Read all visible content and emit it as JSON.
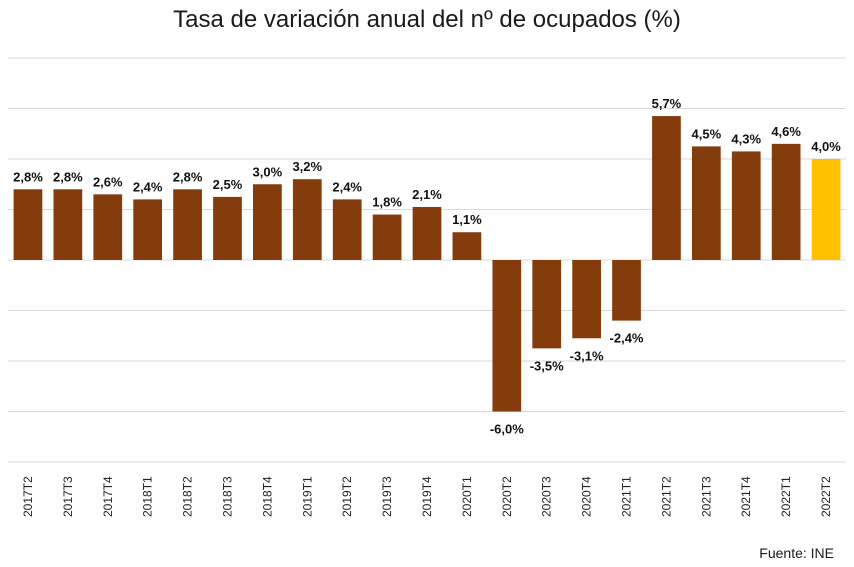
{
  "title": "Tasa de variación anual del nº de ocupados (%)",
  "source": "Fuente: INE",
  "chart_data": {
    "type": "bar",
    "title": "Tasa de variación anual del nº de ocupados (%)",
    "xlabel": "",
    "ylabel": "",
    "ylim": [
      -8,
      8
    ],
    "grid": true,
    "categories": [
      "2017T2",
      "2017T3",
      "2017T4",
      "2018T1",
      "2018T2",
      "2018T3",
      "2018T4",
      "2019T1",
      "2019T2",
      "2019T3",
      "2019T4",
      "2020T1",
      "2020T2",
      "2020T3",
      "2020T4",
      "2021T1",
      "2021T2",
      "2021T3",
      "2021T4",
      "2022T1",
      "2022T2"
    ],
    "values": [
      2.8,
      2.8,
      2.6,
      2.4,
      2.8,
      2.5,
      3.0,
      3.2,
      2.4,
      1.8,
      2.1,
      1.1,
      -6.0,
      -3.5,
      -3.1,
      -2.4,
      5.7,
      4.5,
      4.3,
      4.6,
      4.0
    ],
    "labels": [
      "2,8%",
      "2,8%",
      "2,6%",
      "2,4%",
      "2,8%",
      "2,5%",
      "3,0%",
      "3,2%",
      "2,4%",
      "1,8%",
      "2,1%",
      "1,1%",
      "-6,0%",
      "-3,5%",
      "-3,1%",
      "-2,4%",
      "5,7%",
      "4,5%",
      "4,3%",
      "4,6%",
      "4,0%"
    ],
    "colors": {
      "default": "#843C0C",
      "highlight": "#FFC000",
      "grid": "#D9D9D9"
    },
    "highlight_index": 20
  }
}
